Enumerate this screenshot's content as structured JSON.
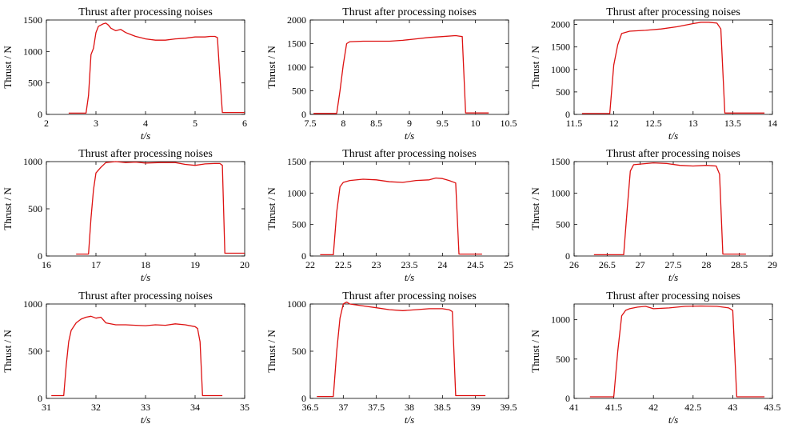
{
  "chart_data": [
    {
      "type": "line",
      "title": "Thrust after processing noises",
      "xlabel": "t/s",
      "ylabel": "Thrust / N",
      "xlim": [
        2,
        6
      ],
      "ylim": [
        0,
        1500
      ],
      "xticks": [
        2,
        3,
        4,
        5,
        6
      ],
      "yticks": [
        0,
        500,
        1000,
        1500
      ],
      "x": [
        2.45,
        2.8,
        2.85,
        2.9,
        2.95,
        3.0,
        3.05,
        3.1,
        3.15,
        3.2,
        3.25,
        3.3,
        3.4,
        3.5,
        3.6,
        3.7,
        3.8,
        3.9,
        4.0,
        4.2,
        4.4,
        4.6,
        4.8,
        5.0,
        5.2,
        5.3,
        5.4,
        5.45,
        5.5,
        5.55,
        6.0
      ],
      "y": [
        20,
        20,
        300,
        950,
        1050,
        1300,
        1400,
        1420,
        1440,
        1450,
        1420,
        1370,
        1330,
        1350,
        1300,
        1270,
        1240,
        1220,
        1200,
        1180,
        1180,
        1200,
        1210,
        1230,
        1230,
        1240,
        1240,
        1220,
        600,
        30,
        30
      ]
    },
    {
      "type": "line",
      "title": "Thrust after processing noises",
      "xlabel": "t/s",
      "ylabel": "Thrust / N",
      "xlim": [
        7.5,
        10.5
      ],
      "ylim": [
        0,
        2000
      ],
      "xticks": [
        7.5,
        8,
        8.5,
        9,
        9.5,
        10,
        10.5
      ],
      "xtick_labels": [
        "7.5",
        "8",
        "8.5",
        "9",
        "9.5",
        "10",
        "10.5"
      ],
      "yticks": [
        0,
        500,
        1000,
        1500,
        2000
      ],
      "x": [
        7.55,
        7.9,
        7.95,
        8.0,
        8.05,
        8.1,
        8.3,
        8.5,
        8.7,
        8.9,
        9.1,
        9.3,
        9.5,
        9.7,
        9.75,
        9.8,
        9.85,
        10.2
      ],
      "y": [
        20,
        20,
        500,
        1050,
        1500,
        1540,
        1550,
        1550,
        1550,
        1570,
        1600,
        1630,
        1650,
        1670,
        1660,
        1650,
        30,
        30
      ]
    },
    {
      "type": "line",
      "title": "Thrust after processing noises",
      "xlabel": "t/s",
      "ylabel": "Thrust / N",
      "xlim": [
        11.5,
        14
      ],
      "ylim": [
        0,
        2100
      ],
      "xticks": [
        11.5,
        12,
        12.5,
        13,
        13.5,
        14
      ],
      "xtick_labels": [
        "11.5",
        "12",
        "12.5",
        "13",
        "13.5",
        "14"
      ],
      "yticks": [
        0,
        500,
        1000,
        1500,
        2000
      ],
      "x": [
        11.6,
        11.95,
        12.0,
        12.05,
        12.1,
        12.2,
        12.4,
        12.6,
        12.8,
        13.0,
        13.1,
        13.2,
        13.3,
        13.35,
        13.4,
        13.9
      ],
      "y": [
        20,
        20,
        1100,
        1550,
        1800,
        1850,
        1870,
        1900,
        1950,
        2020,
        2050,
        2050,
        2030,
        1900,
        30,
        30
      ]
    },
    {
      "type": "line",
      "title": "Thrust after processing noises",
      "xlabel": "t/s",
      "ylabel": "Thrust / N",
      "xlim": [
        16,
        20
      ],
      "ylim": [
        0,
        1000
      ],
      "xticks": [
        16,
        17,
        18,
        19,
        20
      ],
      "yticks": [
        0,
        500,
        1000
      ],
      "x": [
        16.6,
        16.85,
        16.9,
        16.95,
        17.0,
        17.1,
        17.2,
        17.4,
        17.6,
        17.8,
        18.0,
        18.3,
        18.6,
        18.8,
        19.0,
        19.2,
        19.4,
        19.5,
        19.55,
        19.6,
        20.0
      ],
      "y": [
        20,
        20,
        400,
        700,
        880,
        940,
        990,
        1000,
        990,
        995,
        985,
        990,
        990,
        970,
        960,
        975,
        980,
        980,
        960,
        30,
        30
      ]
    },
    {
      "type": "line",
      "title": "Thrust after processing noises",
      "xlabel": "t/s",
      "ylabel": "Thrust / N",
      "xlim": [
        22,
        25
      ],
      "ylim": [
        0,
        1500
      ],
      "xticks": [
        22,
        22.5,
        23,
        23.5,
        24,
        24.5,
        25
      ],
      "xtick_labels": [
        "22",
        "22.5",
        "23",
        "23.5",
        "24",
        "24.5",
        "25"
      ],
      "yticks": [
        0,
        500,
        1000,
        1500
      ],
      "x": [
        22.15,
        22.35,
        22.4,
        22.45,
        22.5,
        22.6,
        22.8,
        23.0,
        23.2,
        23.4,
        23.6,
        23.8,
        23.9,
        24.0,
        24.1,
        24.2,
        24.25,
        24.6
      ],
      "y": [
        20,
        20,
        700,
        1100,
        1170,
        1200,
        1220,
        1210,
        1180,
        1170,
        1200,
        1210,
        1240,
        1230,
        1200,
        1160,
        30,
        30
      ]
    },
    {
      "type": "line",
      "title": "Thrust after processing noises",
      "xlabel": "t/s",
      "ylabel": "Thrust / N",
      "xlim": [
        26,
        29
      ],
      "ylim": [
        0,
        1500
      ],
      "xticks": [
        26,
        26.5,
        27,
        27.5,
        28,
        28.5,
        29
      ],
      "xtick_labels": [
        "26",
        "26.5",
        "27",
        "27.5",
        "28",
        "28.5",
        "29"
      ],
      "yticks": [
        0,
        500,
        1000,
        1500
      ],
      "x": [
        26.3,
        26.75,
        26.8,
        26.85,
        26.9,
        27.0,
        27.2,
        27.4,
        27.6,
        27.8,
        28.0,
        28.15,
        28.2,
        28.25,
        28.6
      ],
      "y": [
        20,
        20,
        700,
        1350,
        1450,
        1460,
        1480,
        1470,
        1440,
        1430,
        1440,
        1430,
        1300,
        30,
        30
      ]
    },
    {
      "type": "line",
      "title": "Thrust after processing noises",
      "xlabel": "t/s",
      "ylabel": "Thrust / N",
      "xlim": [
        31,
        35
      ],
      "ylim": [
        0,
        1000
      ],
      "xticks": [
        31,
        32,
        33,
        34,
        35
      ],
      "yticks": [
        0,
        500,
        1000
      ],
      "x": [
        31.1,
        31.35,
        31.4,
        31.45,
        31.5,
        31.6,
        31.7,
        31.8,
        31.9,
        32.0,
        32.1,
        32.2,
        32.4,
        32.6,
        32.8,
        33.0,
        33.2,
        33.4,
        33.6,
        33.8,
        34.0,
        34.05,
        34.1,
        34.15,
        34.55
      ],
      "y": [
        30,
        30,
        350,
        600,
        720,
        800,
        840,
        860,
        870,
        850,
        860,
        800,
        780,
        780,
        775,
        770,
        780,
        775,
        790,
        780,
        760,
        740,
        600,
        30,
        30
      ]
    },
    {
      "type": "line",
      "title": "Thrust after processing noises",
      "xlabel": "t/s",
      "ylabel": "Thrust / N",
      "xlim": [
        36.5,
        39.5
      ],
      "ylim": [
        0,
        1000
      ],
      "xticks": [
        36.5,
        37,
        37.5,
        38,
        38.5,
        39,
        39.5
      ],
      "xtick_labels": [
        "36.5",
        "37",
        "37.5",
        "38",
        "38.5",
        "39",
        "39.5"
      ],
      "yticks": [
        0,
        500,
        1000
      ],
      "x": [
        36.6,
        36.85,
        36.9,
        36.95,
        37.0,
        37.05,
        37.1,
        37.3,
        37.5,
        37.7,
        37.9,
        38.1,
        38.3,
        38.5,
        38.6,
        38.65,
        38.7,
        39.15
      ],
      "y": [
        20,
        20,
        500,
        850,
        1000,
        1020,
        1000,
        980,
        960,
        940,
        930,
        940,
        950,
        950,
        940,
        920,
        30,
        30
      ]
    },
    {
      "type": "line",
      "title": "Thrust after processing noises",
      "xlabel": "t/s",
      "ylabel": "Thrust / N",
      "xlim": [
        41,
        43.5
      ],
      "ylim": [
        0,
        1200
      ],
      "xticks": [
        41,
        41.5,
        42,
        42.5,
        43,
        43.5
      ],
      "xtick_labels": [
        "41",
        "41.5",
        "42",
        "42.5",
        "43",
        "43.5"
      ],
      "yticks": [
        0,
        500,
        1000
      ],
      "x": [
        41.2,
        41.5,
        41.55,
        41.6,
        41.65,
        41.7,
        41.8,
        41.9,
        42.0,
        42.2,
        42.4,
        42.6,
        42.8,
        42.95,
        43.0,
        43.05,
        43.4
      ],
      "y": [
        20,
        20,
        600,
        1050,
        1120,
        1140,
        1160,
        1170,
        1140,
        1150,
        1170,
        1175,
        1170,
        1150,
        1120,
        20,
        20
      ]
    }
  ],
  "colors": {
    "line": "#dd1111",
    "axis": "#000000",
    "background": "#ffffff"
  }
}
